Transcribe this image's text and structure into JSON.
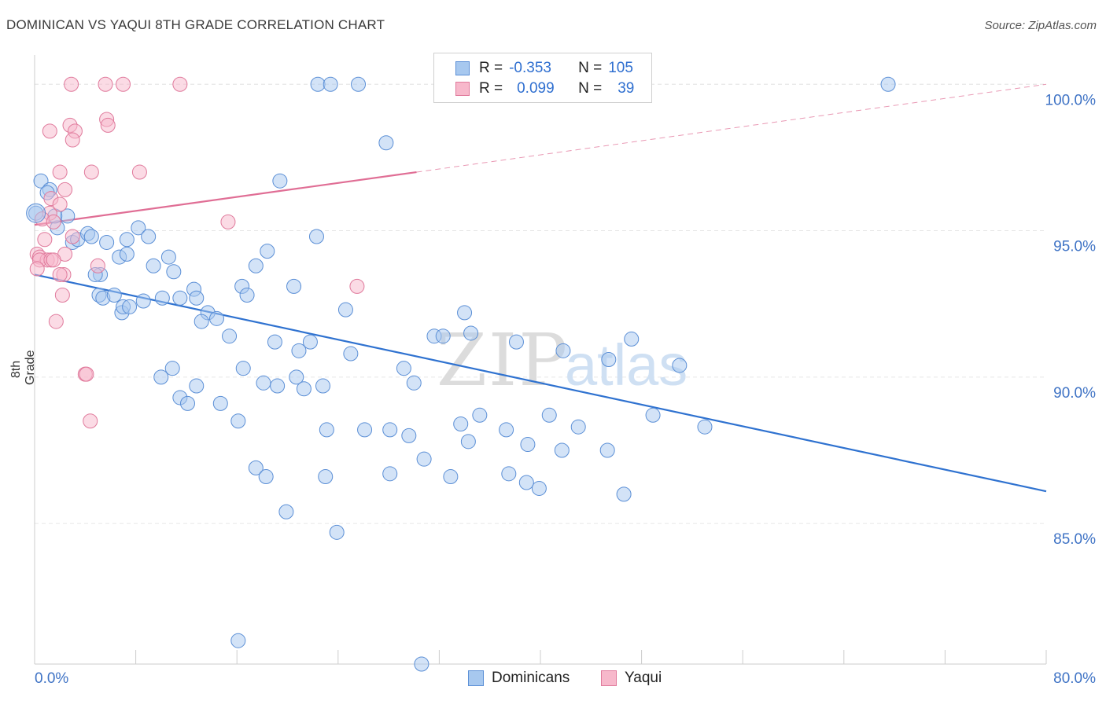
{
  "title": "DOMINICAN VS YAQUI 8TH GRADE CORRELATION CHART",
  "source": "Source: ZipAtlas.com",
  "watermark": {
    "zip": "ZIP",
    "atlas": "atlas"
  },
  "legend": {
    "rows": [
      {
        "r_label": "R =",
        "r_value": "-0.353",
        "n_label": "N =",
        "n_value": "105",
        "color": "#a7c8ef",
        "border": "#5b8fd6"
      },
      {
        "r_label": "R =",
        "r_value": "0.099",
        "n_label": "N =",
        "n_value": "39",
        "color": "#f7b8cb",
        "border": "#e07a9c"
      }
    ]
  },
  "bottom_legend": [
    {
      "label": "Dominicans",
      "color": "#a7c8ef",
      "border": "#5b8fd6"
    },
    {
      "label": "Yaqui",
      "color": "#f7b8cb",
      "border": "#e07a9c"
    }
  ],
  "chart_data": {
    "type": "scatter",
    "title": "DOMINICAN VS YAQUI 8TH GRADE CORRELATION CHART",
    "xlabel": "",
    "ylabel": "8th Grade",
    "xlim": [
      0,
      80
    ],
    "ylim": [
      80.2,
      101.0
    ],
    "x_tick_labels": [
      {
        "value": 0,
        "label": "0.0%"
      },
      {
        "value": 80,
        "label": "80.0%"
      }
    ],
    "y_tick_labels": [
      {
        "value": 100,
        "label": "100.0%"
      },
      {
        "value": 95,
        "label": "95.0%"
      },
      {
        "value": 90,
        "label": "90.0%"
      },
      {
        "value": 85,
        "label": "85.0%"
      }
    ],
    "grid": "horizontal dashed",
    "legend_position": "top-center",
    "series": [
      {
        "name": "Dominicans",
        "color": "#a7c8ef",
        "border": "#5b8fd6",
        "trend": {
          "x0": 0,
          "y0": 93.5,
          "x1": 80,
          "y1": 86.1,
          "style": "solid",
          "color": "#2f72d0"
        },
        "points": [
          [
            0.1,
            95.6
          ],
          [
            0.5,
            96.7
          ],
          [
            1.2,
            96.4
          ],
          [
            1.0,
            96.3
          ],
          [
            1.8,
            95.1
          ],
          [
            2.6,
            95.5
          ],
          [
            1.6,
            95.5
          ],
          [
            3.0,
            94.6
          ],
          [
            3.4,
            94.7
          ],
          [
            4.2,
            94.9
          ],
          [
            4.5,
            94.8
          ],
          [
            5.7,
            94.6
          ],
          [
            6.7,
            94.1
          ],
          [
            7.3,
            94.2
          ],
          [
            7.3,
            94.7
          ],
          [
            8.2,
            95.1
          ],
          [
            9.0,
            94.8
          ],
          [
            9.4,
            93.8
          ],
          [
            10.6,
            94.1
          ],
          [
            11.0,
            93.6
          ],
          [
            11.5,
            92.7
          ],
          [
            5.2,
            93.5
          ],
          [
            4.8,
            93.5
          ],
          [
            5.1,
            92.8
          ],
          [
            5.4,
            92.7
          ],
          [
            6.3,
            92.8
          ],
          [
            6.9,
            92.2
          ],
          [
            7.0,
            92.4
          ],
          [
            7.5,
            92.4
          ],
          [
            8.6,
            92.6
          ],
          [
            10.1,
            92.7
          ],
          [
            12.6,
            93.0
          ],
          [
            12.8,
            92.7
          ],
          [
            13.7,
            92.2
          ],
          [
            13.2,
            91.9
          ],
          [
            14.4,
            92.0
          ],
          [
            15.4,
            91.4
          ],
          [
            16.4,
            93.1
          ],
          [
            16.8,
            92.8
          ],
          [
            17.5,
            93.8
          ],
          [
            18.4,
            94.3
          ],
          [
            20.5,
            93.1
          ],
          [
            19.0,
            91.2
          ],
          [
            20.9,
            90.9
          ],
          [
            21.8,
            91.2
          ],
          [
            22.3,
            94.8
          ],
          [
            24.6,
            92.3
          ],
          [
            25.0,
            90.8
          ],
          [
            19.4,
            96.7
          ],
          [
            22.4,
            100.0
          ],
          [
            23.4,
            100.0
          ],
          [
            25.6,
            100.0
          ],
          [
            27.8,
            98.0
          ],
          [
            29.2,
            90.3
          ],
          [
            30.0,
            89.8
          ],
          [
            31.6,
            91.4
          ],
          [
            32.3,
            91.4
          ],
          [
            34.0,
            92.2
          ],
          [
            34.5,
            91.5
          ],
          [
            38.1,
            91.2
          ],
          [
            41.8,
            90.9
          ],
          [
            45.4,
            90.6
          ],
          [
            47.2,
            91.3
          ],
          [
            51.0,
            90.4
          ],
          [
            10.0,
            90.0
          ],
          [
            10.9,
            90.3
          ],
          [
            11.5,
            89.3
          ],
          [
            12.1,
            89.1
          ],
          [
            12.8,
            89.7
          ],
          [
            14.7,
            89.1
          ],
          [
            16.5,
            90.3
          ],
          [
            18.1,
            89.8
          ],
          [
            19.2,
            89.7
          ],
          [
            20.7,
            90.0
          ],
          [
            21.3,
            89.6
          ],
          [
            22.8,
            89.7
          ],
          [
            16.1,
            88.5
          ],
          [
            23.1,
            88.2
          ],
          [
            26.1,
            88.2
          ],
          [
            28.1,
            88.2
          ],
          [
            29.6,
            88.0
          ],
          [
            30.8,
            87.2
          ],
          [
            33.7,
            88.4
          ],
          [
            34.3,
            87.8
          ],
          [
            35.2,
            88.7
          ],
          [
            37.3,
            88.2
          ],
          [
            39.0,
            87.7
          ],
          [
            40.7,
            88.7
          ],
          [
            41.7,
            87.5
          ],
          [
            43.0,
            88.3
          ],
          [
            45.3,
            87.5
          ],
          [
            48.9,
            88.7
          ],
          [
            53.0,
            88.3
          ],
          [
            17.5,
            86.9
          ],
          [
            18.3,
            86.6
          ],
          [
            23.0,
            86.6
          ],
          [
            28.1,
            86.7
          ],
          [
            32.9,
            86.6
          ],
          [
            37.5,
            86.7
          ],
          [
            38.9,
            86.4
          ],
          [
            39.9,
            86.2
          ],
          [
            46.6,
            86.0
          ],
          [
            19.9,
            85.4
          ],
          [
            23.9,
            84.7
          ],
          [
            16.1,
            81.0
          ],
          [
            30.6,
            80.2
          ],
          [
            67.5,
            100.0
          ]
        ]
      },
      {
        "name": "Yaqui",
        "color": "#f7b8cb",
        "border": "#e07a9c",
        "trend": {
          "x0": 0,
          "y0": 95.2,
          "x1": 30.2,
          "y1": 97.0,
          "dash_to_x": 80,
          "dash_to_y": 100.0,
          "style": "solid then dashed",
          "color": "#e06e95"
        },
        "points": [
          [
            2.9,
            100.0
          ],
          [
            5.6,
            100.0
          ],
          [
            7.0,
            100.0
          ],
          [
            11.5,
            100.0
          ],
          [
            2.8,
            98.6
          ],
          [
            3.2,
            98.4
          ],
          [
            5.7,
            98.8
          ],
          [
            5.8,
            98.6
          ],
          [
            1.2,
            98.4
          ],
          [
            3.0,
            98.1
          ],
          [
            2.0,
            97.0
          ],
          [
            4.5,
            97.0
          ],
          [
            8.3,
            97.0
          ],
          [
            2.4,
            96.4
          ],
          [
            1.3,
            96.1
          ],
          [
            1.2,
            95.6
          ],
          [
            0.6,
            95.4
          ],
          [
            1.5,
            95.3
          ],
          [
            15.3,
            95.3
          ],
          [
            0.8,
            94.7
          ],
          [
            3.0,
            94.8
          ],
          [
            0.2,
            94.2
          ],
          [
            0.4,
            94.1
          ],
          [
            2.4,
            94.2
          ],
          [
            1.0,
            94.0
          ],
          [
            0.4,
            94.0
          ],
          [
            1.3,
            94.0
          ],
          [
            0.2,
            93.7
          ],
          [
            5.0,
            93.8
          ],
          [
            2.3,
            93.5
          ],
          [
            2.0,
            93.5
          ],
          [
            1.5,
            94.0
          ],
          [
            25.5,
            93.1
          ],
          [
            2.2,
            92.8
          ],
          [
            1.7,
            91.9
          ],
          [
            4.0,
            90.1
          ],
          [
            4.1,
            90.1
          ],
          [
            4.4,
            88.5
          ],
          [
            2.0,
            95.9
          ]
        ]
      }
    ]
  }
}
